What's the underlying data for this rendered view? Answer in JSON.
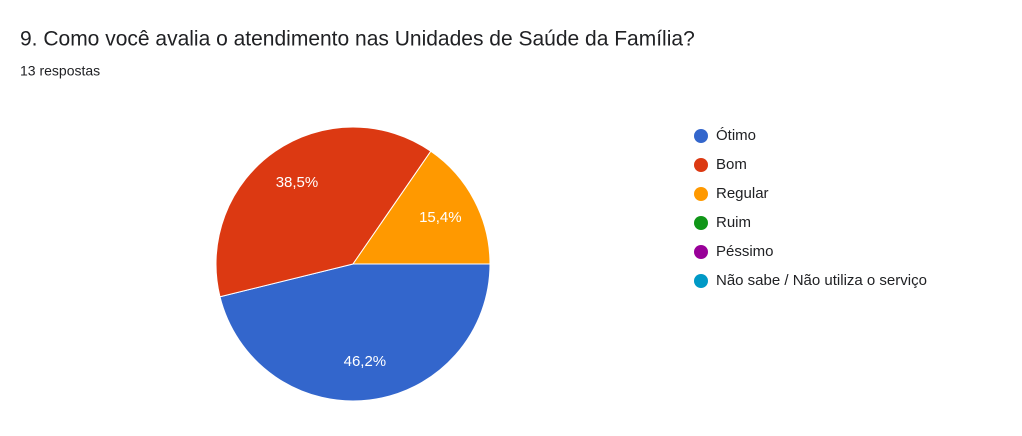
{
  "chart_data": {
    "type": "pie",
    "title": "9. Como você avalia o atendimento nas Unidades de Saúde da Família?",
    "subtitle": "13 respostas",
    "categories": [
      "Ótimo",
      "Bom",
      "Regular",
      "Ruim",
      "Péssimo",
      "Não sabe / Não utiliza o serviço"
    ],
    "values": [
      46.2,
      38.5,
      15.4,
      0,
      0,
      0
    ],
    "value_labels": [
      "46,2%",
      "38,5%",
      "15,4%",
      null,
      null,
      null
    ],
    "colors": [
      "#3366cc",
      "#dc3912",
      "#ff9900",
      "#109618",
      "#990099",
      "#0099c6"
    ],
    "legend": "right"
  }
}
